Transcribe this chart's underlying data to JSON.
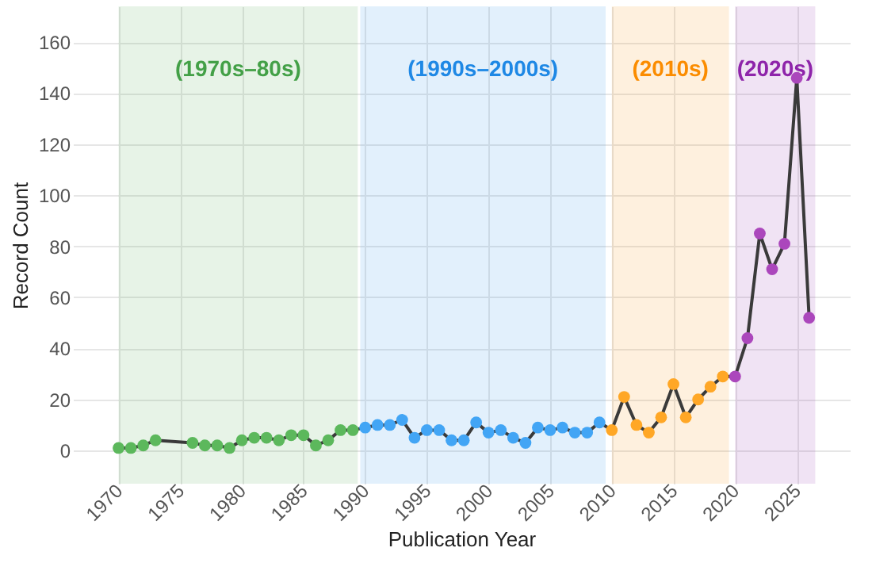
{
  "chart_data": {
    "type": "line",
    "xlabel": "Publication Year",
    "ylabel": "Record Count",
    "xlim": [
      1966.3,
      2029.3
    ],
    "ylim": [
      -13,
      174
    ],
    "xticks": [
      1970,
      1975,
      1980,
      1985,
      1990,
      1995,
      2000,
      2005,
      2010,
      2015,
      2020,
      2025
    ],
    "yticks": [
      0,
      20,
      40,
      60,
      80,
      100,
      120,
      140,
      160
    ],
    "grid": true,
    "bands": [
      {
        "axis": "x",
        "from": 1970,
        "to": 1989.4,
        "label": "(1970s–80s)",
        "color": "#43a047"
      },
      {
        "axis": "x",
        "from": 1989.6,
        "to": 2009.5,
        "label": "(1990s–2000s)",
        "color": "#1e88e5"
      },
      {
        "axis": "x",
        "from": 2010,
        "to": 2019.5,
        "label": "(2010s)",
        "color": "#fb8c00"
      },
      {
        "axis": "x",
        "from": 2020,
        "to": 2026.5,
        "label": "(2020s)",
        "color": "#8e24aa"
      }
    ],
    "series": [
      {
        "type": "line",
        "color": "#3a3a3a",
        "marker": "none",
        "line_style": "solid",
        "x": [
          1970,
          1971,
          1972,
          1973,
          1976,
          1977,
          1978,
          1979,
          1980,
          1981,
          1982,
          1983,
          1984,
          1985,
          1986,
          1987,
          1988,
          1989,
          1990,
          1991,
          1992,
          1993,
          1994,
          1995,
          1996,
          1997,
          1998,
          1999,
          2000,
          2001,
          2002,
          2003,
          2004,
          2005,
          2006,
          2007,
          2008,
          2009,
          2010,
          2011,
          2012,
          2013,
          2014,
          2015,
          2016,
          2017,
          2018,
          2019,
          2020,
          2021,
          2022,
          2023,
          2024,
          2025,
          2026
        ],
        "values": [
          1,
          1,
          2,
          4,
          3,
          2,
          2,
          1,
          4,
          5,
          5,
          4,
          6,
          6,
          2,
          4,
          8,
          8,
          9,
          10,
          10,
          12,
          5,
          8,
          8,
          4,
          4,
          11,
          7,
          8,
          5,
          3,
          9,
          8,
          9,
          7,
          7,
          11,
          8,
          21,
          10,
          7,
          13,
          26,
          13,
          20,
          25,
          29,
          29,
          44,
          85,
          71,
          81,
          146,
          52
        ]
      },
      {
        "type": "scatter",
        "color": "#5cb85c",
        "marker": "circle",
        "x": [
          1970,
          1971,
          1972,
          1973,
          1976,
          1977,
          1978,
          1979,
          1980,
          1981,
          1982,
          1983,
          1984,
          1985,
          1986,
          1987,
          1988,
          1989
        ],
        "values": [
          1,
          1,
          2,
          4,
          3,
          2,
          2,
          1,
          4,
          5,
          5,
          4,
          6,
          6,
          2,
          4,
          8,
          8
        ]
      },
      {
        "type": "scatter",
        "color": "#42a5f5",
        "marker": "circle",
        "x": [
          1990,
          1991,
          1992,
          1993,
          1994,
          1995,
          1996,
          1997,
          1998,
          1999,
          2000,
          2001,
          2002,
          2003,
          2004,
          2005,
          2006,
          2007,
          2008,
          2009
        ],
        "values": [
          9,
          10,
          10,
          12,
          5,
          8,
          8,
          4,
          4,
          11,
          7,
          8,
          5,
          3,
          9,
          8,
          9,
          7,
          7,
          11
        ]
      },
      {
        "type": "scatter",
        "color": "#ffa726",
        "marker": "circle",
        "x": [
          2010,
          2011,
          2012,
          2013,
          2014,
          2015,
          2016,
          2017,
          2018,
          2019
        ],
        "values": [
          8,
          21,
          10,
          7,
          13,
          26,
          13,
          20,
          25,
          29
        ]
      },
      {
        "type": "scatter",
        "color": "#ab47bc",
        "marker": "circle",
        "x": [
          2020,
          2021,
          2022,
          2023,
          2024,
          2025,
          2026
        ],
        "values": [
          29,
          44,
          85,
          71,
          81,
          146,
          52
        ]
      }
    ]
  }
}
